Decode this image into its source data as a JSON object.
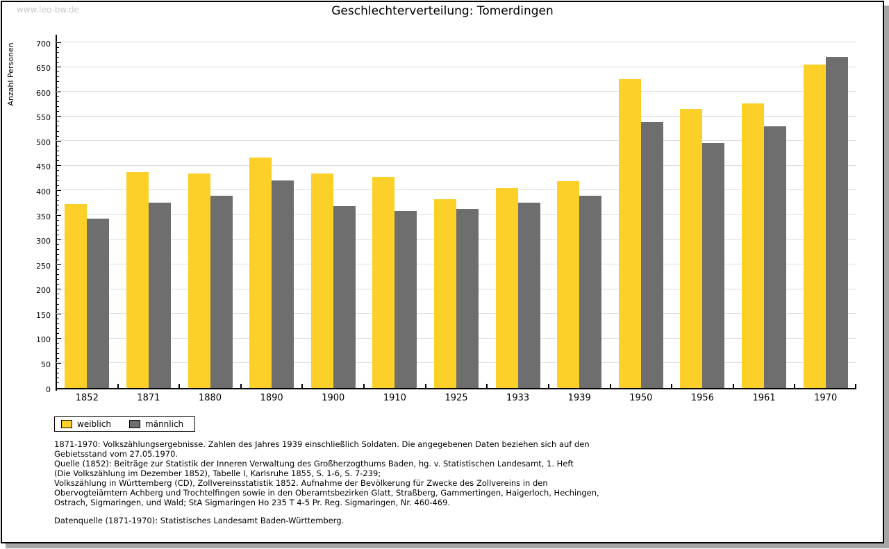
{
  "watermark": "www.leo-bw.de",
  "title": "Geschlechterverteilung: Tomerdingen",
  "chart_data": {
    "type": "bar",
    "title": "Geschlechterverteilung: Tomerdingen",
    "xlabel": "",
    "ylabel": "Anzahl Personen",
    "ylim": [
      0,
      700
    ],
    "ytick_step": 50,
    "minor_tick_step": 10,
    "grid": true,
    "legend_position": "bottom-left",
    "categories": [
      "1852",
      "1871",
      "1880",
      "1890",
      "1900",
      "1910",
      "1925",
      "1933",
      "1939",
      "1950",
      "1956",
      "1961",
      "1970"
    ],
    "series": [
      {
        "name": "weiblich",
        "color": "#fcd028",
        "values": [
          373,
          437,
          434,
          466,
          435,
          428,
          382,
          405,
          419,
          625,
          565,
          577,
          655
        ]
      },
      {
        "name": "männlich",
        "color": "#6e6e6e",
        "values": [
          343,
          376,
          390,
          420,
          368,
          359,
          362,
          375,
          390,
          539,
          496,
          530,
          670
        ]
      }
    ]
  },
  "colors": {
    "gridline": "#dcdcdc",
    "axis": "#000000",
    "watermark": "#c8c8c8",
    "shadow": "#a6a6a6"
  },
  "footer": {
    "lines": [
      "1871-1970: Volkszählungsergebnisse. Zahlen des Jahres 1939 einschließlich Soldaten. Die angegebenen Daten beziehen sich auf den",
      "Gebietsstand vom 27.05.1970.",
      "Quelle (1852): Beiträge zur Statistik der Inneren Verwaltung des Großherzogthums Baden, hg. v. Statistischen Landesamt, 1. Heft",
      "(Die Volkszählung im Dezember 1852), Tabelle I, Karlsruhe 1855, S. 1-6, S. 7-239;",
      "Volkszählung in Württemberg (CD), Zollvereinsstatistik 1852. Aufnahme der Bevölkerung für Zwecke des Zollvereins in den",
      "Obervogteiämtern Achberg und Trochtelfingen sowie in den Oberamtsbezirken Glatt, Straßberg, Gammertingen, Haigerloch, Hechingen,",
      "Ostrach, Sigmaringen, und Wald; StA Sigmaringen Ho 235 T 4-5 Pr. Reg. Sigmaringen, Nr. 460-469."
    ],
    "source_line": "Datenquelle (1871-1970): Statistisches Landesamt Baden-Württemberg."
  }
}
